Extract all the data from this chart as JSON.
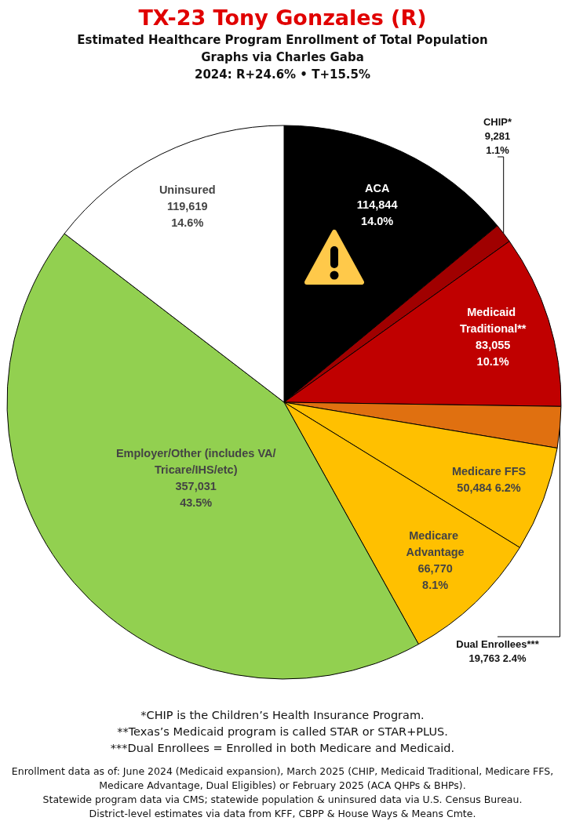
{
  "chart_data": {
    "type": "pie",
    "title": "TX-23 Tony Gonzales (R)",
    "subtitle": "Estimated Healthcare Program Enrollment of Total Population\nGraphs via Charles Gaba\n2024: R+24.6% • T+15.5%",
    "categories": [
      "ACA",
      "CHIP*",
      "Medicaid Traditional**",
      "Dual Enrollees***",
      "Medicare FFS",
      "Medicare Advantage",
      "Employer/Other (includes VA/Tricare/IHS/etc)",
      "Uninsured"
    ],
    "values": [
      114844,
      9281,
      83055,
      19763,
      50484,
      66770,
      357031,
      119619
    ],
    "value_labels": [
      "114,844\n14.0%",
      "9,281\n1.1%",
      "83,055\n10.1%",
      "19,763 2.4%",
      "50,484 6.2%",
      "66,770\n8.1%",
      "357,031\n43.5%",
      "119,619\n14.6%"
    ],
    "colors": [
      "#000000",
      "#a00000",
      "#c00000",
      "#e07010",
      "#ffc000",
      "#ffc000",
      "#92d050",
      "#ffffff"
    ],
    "legend": false,
    "annotations": [
      "*CHIP is the Children’s Health Insurance Program.",
      "**Texas’s Medicaid program is called STAR or STAR+PLUS.",
      "***Dual Enrollees = Enrolled in both Medicare and Medicaid.",
      "Enrollment data as of: June 2024 (Medicaid expansion), March 2025 (CHIP, Medicaid Traditional, Medicare FFS, Medicare Advantage, Dual Eligibles) or February 2025 (ACA QHPs & BHPs).",
      "Statewide program data via CMS; statewide population & uninsured data via U.S. Census Bureau.",
      "District-level estimates via data from KFF, CBPP & House Ways & Means Cmte."
    ]
  }
}
